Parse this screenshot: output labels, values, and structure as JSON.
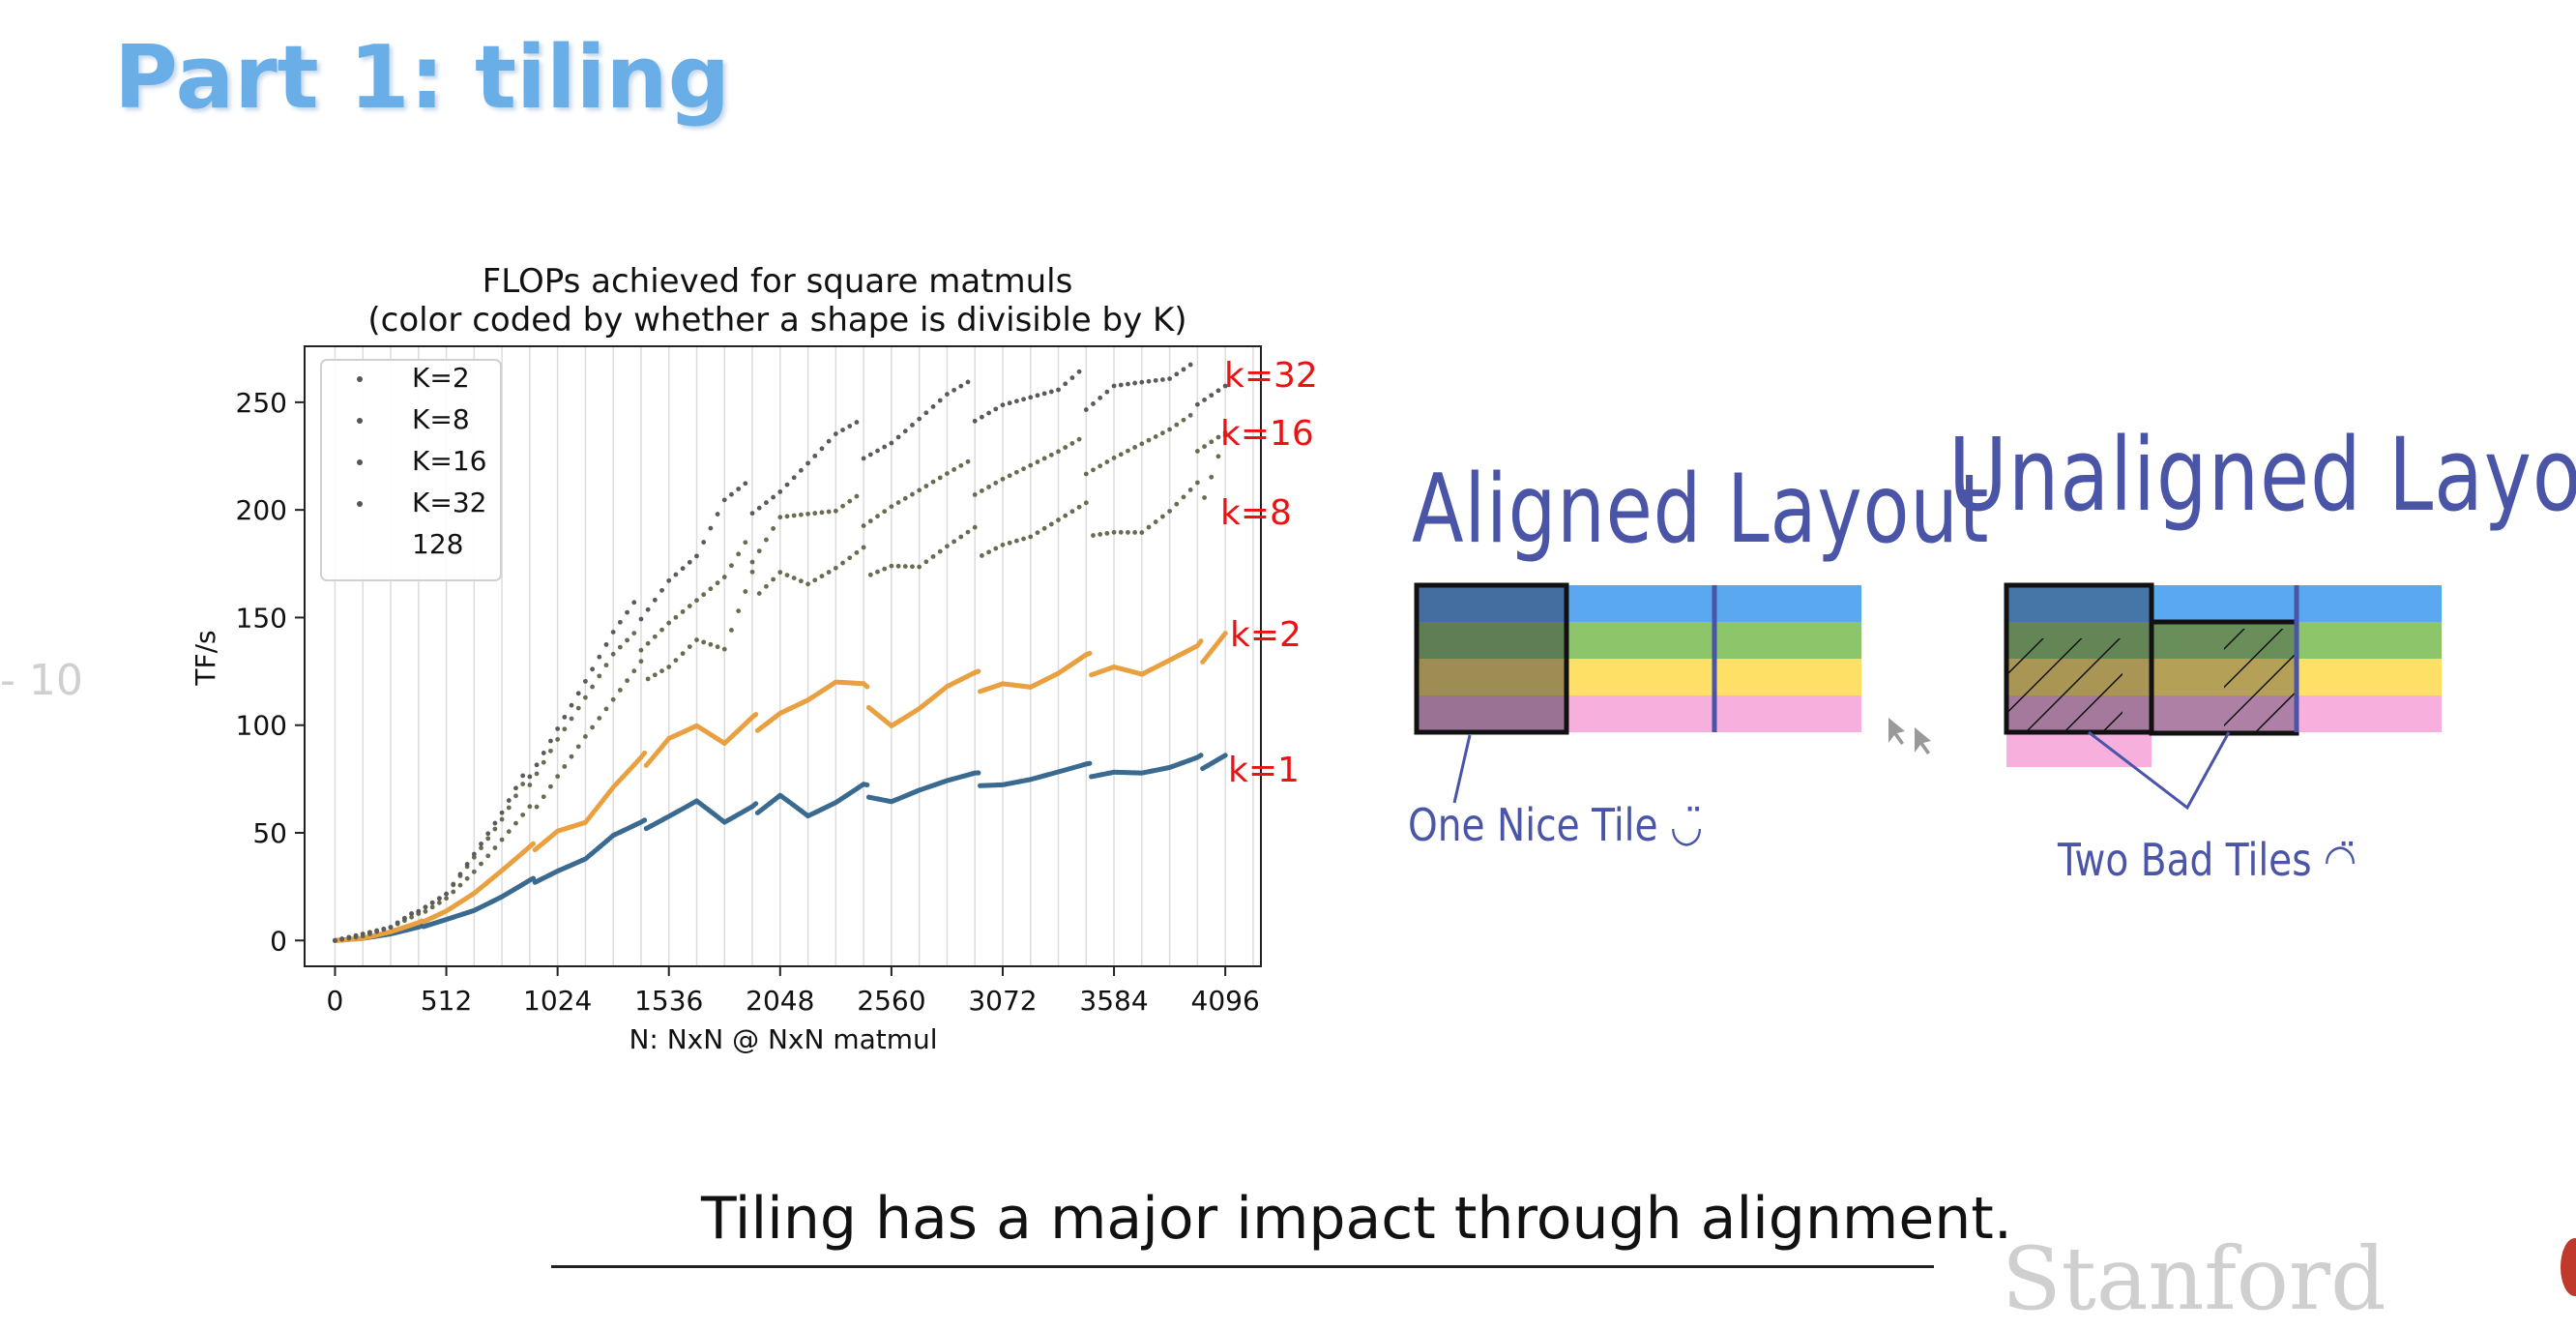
{
  "page": {
    "title": "Part 1: tiling",
    "side_fragment": "- 10",
    "caption": "Tiling has a major impact through alignment.",
    "logo_fragment": "Stanford"
  },
  "chart_data": {
    "type": "scatter",
    "title": "FLOPs achieved for square matmuls",
    "subtitle": "(color coded by whether a shape is divisible by K)",
    "xlabel": "N: NxN @ NxN matmul",
    "ylabel": "TF/s",
    "xlim": [
      -140,
      4260
    ],
    "ylim": [
      -12,
      276
    ],
    "xticks": [
      0,
      512,
      1024,
      1536,
      2048,
      2560,
      3072,
      3584,
      4096
    ],
    "yticks": [
      0,
      50,
      100,
      150,
      200,
      250
    ],
    "vertical_gridlines_every": 128,
    "grid": "vertical",
    "legend_position": "upper-left",
    "legend": [
      "K=2",
      "K=8",
      "K=16",
      "K=32",
      "128"
    ],
    "annotations": [
      "k=32",
      "k=16",
      "k=8",
      "k=2",
      "k=1"
    ],
    "annotation_color": "#ee1111",
    "series": [
      {
        "name": "k=1",
        "color": "#3a6a90",
        "style": "dense-line",
        "x": [
          0,
          128,
          256,
          384,
          512,
          640,
          768,
          896,
          1024,
          1152,
          1280,
          1408,
          1536,
          1664,
          1792,
          1920,
          2048,
          2176,
          2304,
          2432,
          2560,
          2688,
          2816,
          2944,
          3072,
          3200,
          3328,
          3456,
          3584,
          3712,
          3840,
          3968,
          4096
        ],
        "y": [
          0,
          1,
          3,
          6,
          10,
          14,
          20,
          27,
          33,
          38,
          48,
          53,
          59,
          65,
          54,
          60,
          69,
          58,
          63,
          70,
          66,
          70,
          73,
          75,
          74,
          75,
          77,
          79,
          80,
          78,
          79,
          82,
          88
        ]
      },
      {
        "name": "k=2",
        "color": "#e8a040",
        "style": "dense-line",
        "x": [
          0,
          128,
          256,
          384,
          512,
          640,
          768,
          896,
          1024,
          1152,
          1280,
          1408,
          1536,
          1664,
          1792,
          1920,
          2048,
          2176,
          2304,
          2432,
          2560,
          2688,
          2816,
          2944,
          3072,
          3200,
          3328,
          3456,
          3584,
          3712,
          3840,
          3968,
          4096
        ],
        "y": [
          0,
          1,
          4,
          8,
          14,
          22,
          32,
          42,
          52,
          55,
          70,
          82,
          96,
          100,
          90,
          100,
          108,
          112,
          118,
          115,
          102,
          108,
          116,
          120,
          122,
          118,
          122,
          128,
          130,
          124,
          128,
          132,
          146
        ]
      },
      {
        "name": "k=8",
        "color": "#6a6a50",
        "style": "dots",
        "x": [
          0,
          128,
          256,
          384,
          512,
          640,
          768,
          896,
          1024,
          1152,
          1280,
          1408,
          1536,
          1664,
          1792,
          1920,
          2048,
          2176,
          2304,
          2432,
          2560,
          2688,
          2816,
          2944,
          3072,
          3200,
          3328,
          3456,
          3584,
          3712,
          3840,
          3968,
          4096
        ],
        "y": [
          0,
          2,
          6,
          12,
          20,
          32,
          46,
          60,
          78,
          95,
          110,
          125,
          130,
          140,
          133,
          165,
          175,
          166,
          170,
          176,
          178,
          174,
          180,
          185,
          188,
          188,
          192,
          196,
          194,
          190,
          196,
          205,
          240
        ]
      },
      {
        "name": "k=16",
        "color": "#6a6a50",
        "style": "dots",
        "x": [
          0,
          256,
          512,
          768,
          1024,
          1280,
          1536,
          1792,
          2048,
          2304,
          2560,
          2816,
          3072,
          3328,
          3584,
          3840,
          4096
        ],
        "y": [
          0,
          6,
          22,
          55,
          95,
          130,
          150,
          165,
          200,
          195,
          205,
          212,
          218,
          222,
          228,
          232,
          240
        ]
      },
      {
        "name": "k=32",
        "color": "#5a5a5a",
        "style": "dots",
        "x": [
          0,
          256,
          512,
          768,
          1024,
          1280,
          1536,
          1664,
          1792,
          2048,
          2304,
          2560,
          2816,
          3072,
          3328,
          3584,
          3840,
          4096
        ],
        "y": [
          0,
          6,
          22,
          58,
          100,
          140,
          170,
          178,
          200,
          212,
          230,
          235,
          248,
          253,
          250,
          262,
          255,
          262
        ]
      }
    ]
  },
  "diagram": {
    "aligned_title": "Aligned Layout",
    "unaligned_title": "Unaligned Layout",
    "aligned_note": "One Nice Tile ◡̈",
    "unaligned_note": "Two Bad Tiles ◠̈",
    "stripe_colors": [
      "#5aa8f0",
      "#8cc56a",
      "#ffe066",
      "#f7b0dd"
    ],
    "ink_color": "#4a55a8"
  }
}
